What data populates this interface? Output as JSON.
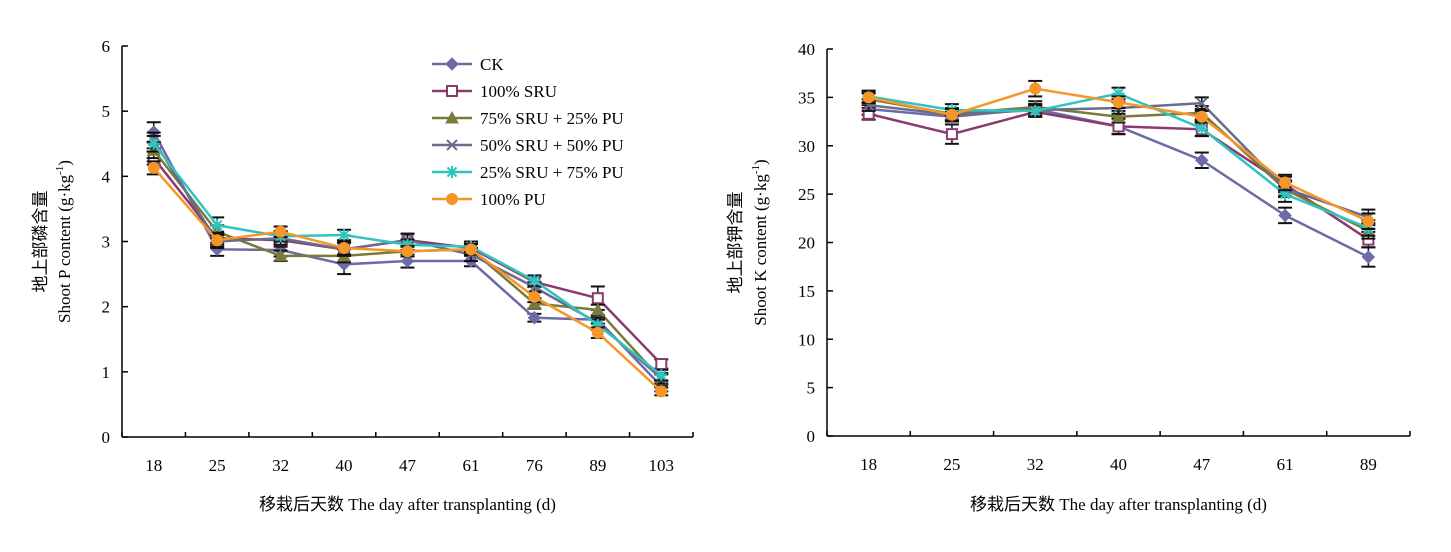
{
  "chart_data": [
    {
      "type": "line",
      "categories": [
        "18",
        "25",
        "32",
        "40",
        "47",
        "61",
        "76",
        "89",
        "103"
      ],
      "ylabel_cn": "地上部磷含量",
      "ylabel": "Shoot P content (g·kg-1)",
      "ylabel_text": "Shoot P content (g·kg",
      "ylabel_sup": "-1",
      "ylabel_close": ")",
      "xlabel": "移栽后天数 The day after transplanting (d)",
      "ylim": [
        0,
        6
      ],
      "yticks": [
        "0",
        "1",
        "2",
        "3",
        "4",
        "5",
        "6"
      ],
      "legend_position": "top-center",
      "series": [
        {
          "name": "CK",
          "color": "#6b6ba8",
          "marker": "diamond",
          "values": [
            4.68,
            2.88,
            2.87,
            2.65,
            2.7,
            2.7,
            1.83,
            1.8,
            0.78
          ],
          "err": [
            0.15,
            0.1,
            0.1,
            0.15,
            0.1,
            0.08,
            0.06,
            0.06,
            0.08
          ]
        },
        {
          "name": "100% SRU",
          "color": "#8b3a6e",
          "marker": "square",
          "values": [
            4.28,
            3.05,
            3.02,
            2.88,
            3.02,
            2.9,
            2.38,
            2.13,
            1.12
          ],
          "err": [
            0.1,
            0.1,
            0.1,
            0.1,
            0.1,
            0.08,
            0.08,
            0.18,
            0.07
          ]
        },
        {
          "name": "75% SRU + 25% PU",
          "color": "#7a7a3a",
          "marker": "triangle",
          "values": [
            4.4,
            3.15,
            2.78,
            2.78,
            2.85,
            2.88,
            2.05,
            1.95,
            0.88
          ],
          "err": [
            0.12,
            0.1,
            0.08,
            0.1,
            0.08,
            0.08,
            0.08,
            0.08,
            0.08
          ]
        },
        {
          "name": "50% SRU + 50% PU",
          "color": "#6b6b8c",
          "marker": "x",
          "values": [
            4.55,
            3.0,
            3.05,
            2.88,
            3.02,
            2.8,
            2.3,
            1.75,
            0.9
          ],
          "err": [
            0.12,
            0.1,
            0.1,
            0.1,
            0.1,
            0.1,
            0.08,
            0.08,
            0.08
          ]
        },
        {
          "name": "25% SRU + 75% PU",
          "color": "#2fc4c0",
          "marker": "star",
          "values": [
            4.5,
            3.25,
            3.08,
            3.1,
            2.95,
            2.92,
            2.4,
            1.72,
            0.95
          ],
          "err": [
            0.12,
            0.12,
            0.08,
            0.08,
            0.08,
            0.08,
            0.08,
            0.08,
            0.08
          ]
        },
        {
          "name": "100% PU",
          "color": "#f5962a",
          "marker": "circle",
          "values": [
            4.13,
            3.02,
            3.15,
            2.9,
            2.85,
            2.88,
            2.15,
            1.6,
            0.7
          ],
          "err": [
            0.1,
            0.1,
            0.08,
            0.1,
            0.08,
            0.08,
            0.08,
            0.08,
            0.06
          ]
        }
      ]
    },
    {
      "type": "line",
      "categories": [
        "18",
        "25",
        "32",
        "40",
        "47",
        "61",
        "89"
      ],
      "ylabel_cn": "地上部钾含量",
      "ylabel": "Shoot K content (g·kg-1)",
      "ylabel_text": "Shoot K content (g·kg",
      "ylabel_sup": "-1",
      "ylabel_close": ")",
      "xlabel": "移栽后天数 The day after transplanting (d)",
      "ylim": [
        0,
        40
      ],
      "yticks": [
        "0",
        "5",
        "10",
        "15",
        "20",
        "25",
        "30",
        "35",
        "40"
      ],
      "series": [
        {
          "name": "CK",
          "color": "#6b6ba8",
          "marker": "diamond",
          "values": [
            33.8,
            33.0,
            33.8,
            32.0,
            28.5,
            22.8,
            18.5
          ],
          "err": [
            0.6,
            0.5,
            0.5,
            0.8,
            0.8,
            0.8,
            1.0
          ]
        },
        {
          "name": "100% SRU",
          "color": "#8b3a6e",
          "marker": "square",
          "values": [
            33.3,
            31.2,
            33.5,
            32.0,
            31.7,
            26.0,
            20.3
          ],
          "err": [
            0.6,
            1.0,
            0.5,
            0.8,
            0.7,
            0.8,
            0.8
          ]
        },
        {
          "name": "75% SRU + 25% PU",
          "color": "#7a7a3a",
          "marker": "triangle",
          "values": [
            34.8,
            33.3,
            34.0,
            33.0,
            33.4,
            25.5,
            21.2
          ],
          "err": [
            0.6,
            0.6,
            0.6,
            0.6,
            0.7,
            0.8,
            0.8
          ]
        },
        {
          "name": "50% SRU + 50% PU",
          "color": "#6b6b8c",
          "marker": "x",
          "values": [
            34.2,
            33.2,
            33.7,
            33.9,
            34.4,
            25.6,
            22.6
          ],
          "err": [
            0.6,
            0.6,
            0.6,
            0.6,
            0.6,
            0.8,
            0.8
          ]
        },
        {
          "name": "25% SRU + 75% PU",
          "color": "#2fc4c0",
          "marker": "star",
          "values": [
            35.1,
            33.7,
            33.6,
            35.4,
            31.8,
            25.0,
            21.5
          ],
          "err": [
            0.6,
            0.6,
            0.6,
            0.6,
            0.8,
            0.8,
            0.8
          ]
        },
        {
          "name": "100% PU",
          "color": "#f5962a",
          "marker": "circle",
          "values": [
            35.0,
            33.2,
            35.9,
            34.5,
            33.0,
            26.2,
            22.2
          ],
          "err": [
            0.6,
            0.6,
            0.8,
            0.6,
            0.6,
            0.8,
            0.8
          ]
        }
      ]
    }
  ]
}
